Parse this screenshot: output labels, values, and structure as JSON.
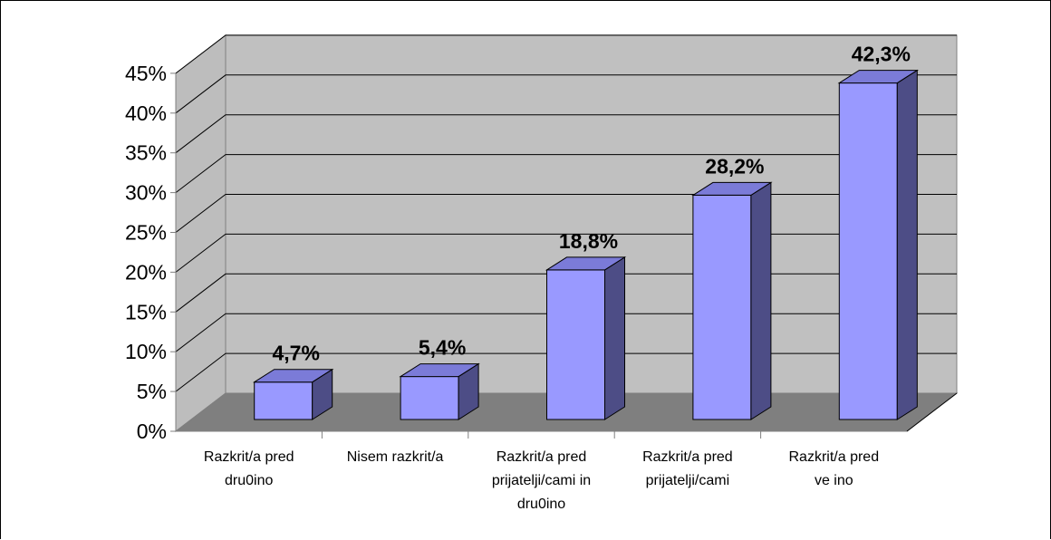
{
  "chart_data": {
    "type": "bar",
    "style": "3d-column",
    "categories": [
      [
        "Razkrit/a pred",
        "dru0ino"
      ],
      [
        "Nisem razkrit/a"
      ],
      [
        "Razkrit/a pred",
        "prijatelji/cami in",
        "dru0ino"
      ],
      [
        "Razkrit/a pred",
        "prijatelji/cami"
      ],
      [
        "Razkrit/a pred",
        "ve  ino"
      ]
    ],
    "values": [
      4.7,
      5.4,
      18.8,
      28.2,
      42.3
    ],
    "data_labels": [
      "4,7%",
      "5,4%",
      "18,8%",
      "28,2%",
      "42,3%"
    ],
    "y_ticks": [
      "0%",
      "5%",
      "10%",
      "15%",
      "20%",
      "25%",
      "30%",
      "35%",
      "40%",
      "45%"
    ],
    "ylim": [
      0,
      45
    ],
    "grid": true,
    "legend": "none",
    "colors": {
      "bar_front": "#9999ff",
      "bar_top": "#7b7bd8",
      "bar_side": "#4d4d86",
      "back_wall": "#c0c0c0",
      "side_wall": "#bdbdbd",
      "floor": "#7f7f7f",
      "gridline": "#000000"
    }
  }
}
